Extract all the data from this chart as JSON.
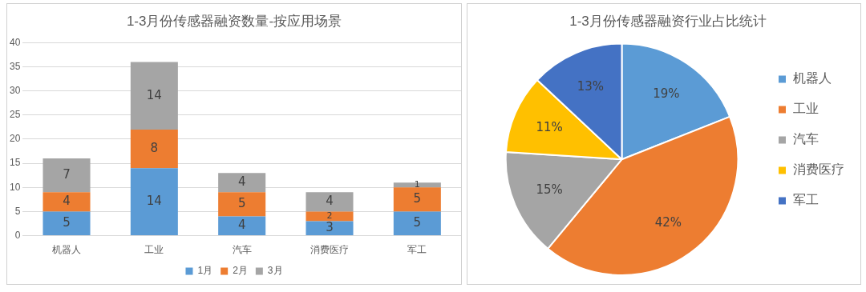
{
  "chart_data": [
    {
      "type": "bar",
      "title": "1-3月份传感器融资数量-按应用场景",
      "categories": [
        "机器人",
        "工业",
        "汽车",
        "消费医疗",
        "军工"
      ],
      "stacked": true,
      "series": [
        {
          "name": "1月",
          "color": "#5b9bd5",
          "values": [
            5,
            14,
            4,
            3,
            5
          ]
        },
        {
          "name": "2月",
          "color": "#ed7d31",
          "values": [
            4,
            8,
            5,
            2,
            5
          ]
        },
        {
          "name": "3月",
          "color": "#a5a5a5",
          "values": [
            7,
            14,
            4,
            4,
            1
          ]
        }
      ],
      "ylim": [
        0,
        40
      ],
      "yticks": [
        0,
        5,
        10,
        15,
        20,
        25,
        30,
        35,
        40
      ],
      "grid": "y",
      "legend": "bottom",
      "data_labels": true
    },
    {
      "type": "pie",
      "title": "1-3月份传感器融资行业占比统计",
      "categories": [
        "机器人",
        "工业",
        "汽车",
        "消费医疗",
        "军工"
      ],
      "values": [
        19,
        42,
        15,
        11,
        13
      ],
      "value_labels": [
        "19%",
        "42%",
        "15%",
        "11%",
        "13%"
      ],
      "colors": [
        "#5b9bd5",
        "#ed7d31",
        "#a5a5a5",
        "#ffc000",
        "#4472c4"
      ],
      "legend": "right"
    }
  ]
}
